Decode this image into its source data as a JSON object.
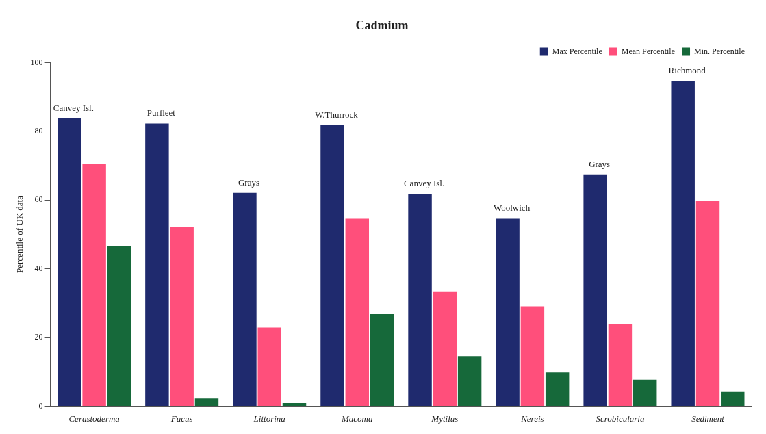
{
  "chart_data": {
    "type": "bar",
    "title": "Cadmium",
    "ylabel": "Percentile of UK data",
    "categories": [
      "Cerastoderma",
      "Fucus",
      "Littorina",
      "Macoma",
      "Mytilus",
      "Nereis",
      "Scrobicularia",
      "Sediment"
    ],
    "series": [
      {
        "name": "Max Percentile",
        "color": "#1f2a6e",
        "values": [
          83.8,
          82.3,
          62.1,
          81.8,
          61.8,
          54.6,
          67.5,
          94.7
        ]
      },
      {
        "name": "Mean Percentile",
        "color": "#ff4f7b",
        "values": [
          70.6,
          52.2,
          22.9,
          54.6,
          33.4,
          29.1,
          23.8,
          59.7
        ]
      },
      {
        "name": "Min. Percentile",
        "color": "#16693a",
        "values": [
          46.5,
          2.2,
          1.0,
          27.0,
          14.6,
          9.8,
          7.7,
          4.3
        ]
      }
    ],
    "ylim": [
      0,
      100
    ],
    "yticks": [
      0,
      20,
      40,
      60,
      80,
      100
    ],
    "grid": false,
    "legend": "top right",
    "annotations": [
      "Canvey Isl.",
      "Purfleet",
      "Grays",
      "W.Thurrock",
      "Canvey Isl.",
      "Woolwich",
      "Grays",
      "Richmond"
    ]
  }
}
